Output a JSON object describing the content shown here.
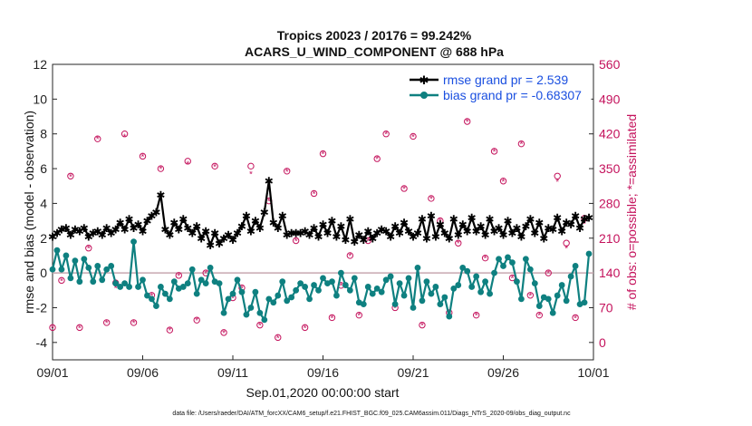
{
  "chart_data": {
    "type": "line",
    "title": "Tropics 20023 / 20176 = 99.242%",
    "subtitle": "ACARS_U_WIND_COMPONENT @ 688 hPa",
    "xlabel": "Sep.01,2020 00:00:00 start",
    "ylabel": "rmse and bias (model - observation)",
    "ylabel_right": "# of obs: o=possible; *=assimilated",
    "footer": "data file: /Users/raeder/DAI/ATM_forcXX/CAM6_setup/f.e21.FHIST_BGC.f09_025.CAM6assim.011/Diags_NTrS_2020-09/obs_diag_output.nc",
    "xlim": [
      0,
      30
    ],
    "ylim": [
      -5,
      12
    ],
    "ylim_right": [
      -35,
      560
    ],
    "xtick_labels": [
      "09/01",
      "09/06",
      "09/11",
      "09/16",
      "09/21",
      "09/26",
      "10/01"
    ],
    "ytick_labels": [
      "-4",
      "-2",
      "0",
      "2",
      "4",
      "6",
      "8",
      "10",
      "12"
    ],
    "ytick_right_labels": [
      "0",
      "70",
      "140",
      "210",
      "280",
      "350",
      "420",
      "490",
      "560"
    ],
    "series": [
      {
        "name": "rmse grand pr = 2.539",
        "color": "#000000",
        "marker": "star",
        "x": [
          0,
          0.25,
          0.5,
          0.75,
          1,
          1.25,
          1.5,
          1.75,
          2,
          2.25,
          2.5,
          2.75,
          3,
          3.25,
          3.5,
          3.75,
          4,
          4.25,
          4.5,
          4.75,
          5,
          5.25,
          5.5,
          5.75,
          6,
          6.25,
          6.5,
          6.75,
          7,
          7.25,
          7.5,
          7.75,
          8,
          8.25,
          8.5,
          8.75,
          9,
          9.25,
          9.5,
          9.75,
          10,
          10.25,
          10.5,
          10.75,
          11,
          11.25,
          11.5,
          11.75,
          12,
          12.25,
          12.5,
          12.75,
          13,
          13.25,
          13.5,
          13.75,
          14,
          14.25,
          14.5,
          14.75,
          15,
          15.25,
          15.5,
          15.75,
          16,
          16.25,
          16.5,
          16.75,
          17,
          17.25,
          17.5,
          17.75,
          18,
          18.25,
          18.5,
          18.75,
          19,
          19.25,
          19.5,
          19.75,
          20,
          20.25,
          20.5,
          20.75,
          21,
          21.25,
          21.5,
          21.75,
          22,
          22.25,
          22.5,
          22.75,
          23,
          23.25,
          23.5,
          23.75,
          24,
          24.25,
          24.5,
          24.75,
          25,
          25.25,
          25.5,
          25.75,
          26,
          26.25,
          26.5,
          26.75,
          27,
          27.25,
          27.5,
          27.75,
          28,
          28.25,
          28.5,
          28.75,
          29,
          29.25,
          29.5,
          29.75
        ],
        "values": [
          2.1,
          2.3,
          2.5,
          2.6,
          2.2,
          2.5,
          2.4,
          2.6,
          2.1,
          2.3,
          2.4,
          2.2,
          2.6,
          2.3,
          2.5,
          2.9,
          2.5,
          3.1,
          2.6,
          2.8,
          2.4,
          3.0,
          3.3,
          3.5,
          4.5,
          2.5,
          2.2,
          2.9,
          2.5,
          3.1,
          2.6,
          2.3,
          2.7,
          2.0,
          2.4,
          1.6,
          2.3,
          1.7,
          2.0,
          2.2,
          1.9,
          2.3,
          2.7,
          3.3,
          2.4,
          3.0,
          2.6,
          3.5,
          5.3,
          2.9,
          2.6,
          3.3,
          2.2,
          2.3,
          2.3,
          2.3,
          2.4,
          2.2,
          2.6,
          2.1,
          2.8,
          2.3,
          3.0,
          2.1,
          2.7,
          1.9,
          3.1,
          1.8,
          2.2,
          1.9,
          2.4,
          2.0,
          2.3,
          2.5,
          2.4,
          2.1,
          2.7,
          2.3,
          2.9,
          2.4,
          2.1,
          2.3,
          3.1,
          2.0,
          3.3,
          2.1,
          2.8,
          2.3,
          2.0,
          3.1,
          2.2,
          2.8,
          2.4,
          3.2,
          2.4,
          2.7,
          2.2,
          3.1,
          2.4,
          2.6,
          2.2,
          3.0,
          2.3,
          2.6,
          2.1,
          2.7,
          3.1,
          2.3,
          2.9,
          2.0,
          2.6,
          2.5,
          3.2,
          2.4,
          2.9,
          2.8,
          3.3,
          2.6,
          3.1,
          3.2
        ],
        "legend_value": "2.539"
      },
      {
        "name": "bias grand pr = -0.68307",
        "color": "#0e8080",
        "marker": "circle",
        "x": [
          0,
          0.25,
          0.5,
          0.75,
          1,
          1.25,
          1.5,
          1.75,
          2,
          2.25,
          2.5,
          2.75,
          3,
          3.25,
          3.5,
          3.75,
          4,
          4.25,
          4.5,
          4.75,
          5,
          5.25,
          5.5,
          5.75,
          6,
          6.25,
          6.5,
          6.75,
          7,
          7.25,
          7.5,
          7.75,
          8,
          8.25,
          8.5,
          8.75,
          9,
          9.25,
          9.5,
          9.75,
          10,
          10.25,
          10.5,
          10.75,
          11,
          11.25,
          11.5,
          11.75,
          12,
          12.25,
          12.5,
          12.75,
          13,
          13.25,
          13.5,
          13.75,
          14,
          14.25,
          14.5,
          14.75,
          15,
          15.25,
          15.5,
          15.75,
          16,
          16.25,
          16.5,
          16.75,
          17,
          17.25,
          17.5,
          17.75,
          18,
          18.25,
          18.5,
          18.75,
          19,
          19.25,
          19.5,
          19.75,
          20,
          20.25,
          20.5,
          20.75,
          21,
          21.25,
          21.5,
          21.75,
          22,
          22.25,
          22.5,
          22.75,
          23,
          23.25,
          23.5,
          23.75,
          24,
          24.25,
          24.5,
          24.75,
          25,
          25.25,
          25.5,
          25.75,
          26,
          26.25,
          26.5,
          26.75,
          27,
          27.25,
          27.5,
          27.75,
          28,
          28.25,
          28.5,
          28.75,
          29,
          29.25,
          29.5,
          29.75
        ],
        "values": [
          0.2,
          1.3,
          0.2,
          1.0,
          -0.3,
          0.7,
          -0.5,
          0.8,
          0.3,
          -0.5,
          0.4,
          -0.4,
          0.2,
          0.4,
          -0.6,
          -0.8,
          -0.6,
          -0.8,
          1.8,
          -0.8,
          -0.4,
          -1.3,
          -1.5,
          -1.9,
          -0.8,
          -1.2,
          -1.5,
          -0.5,
          -0.9,
          -0.8,
          -0.6,
          0.2,
          -1.2,
          -0.4,
          -0.6,
          0.3,
          -0.5,
          -0.6,
          -2.3,
          -1.5,
          -1.2,
          -0.4,
          -1.1,
          -2.4,
          -2.0,
          -1.1,
          -2.3,
          -2.7,
          -1.5,
          -1.7,
          -1.3,
          -0.5,
          -1.6,
          -1.4,
          -1.0,
          -0.6,
          -0.8,
          -1.5,
          -0.7,
          -1.0,
          -0.3,
          -0.6,
          -0.5,
          -1.3,
          0.0,
          -0.7,
          -1.0,
          -0.3,
          -1.7,
          -1.8,
          -0.8,
          -1.2,
          -0.9,
          -1.1,
          -0.4,
          -0.2,
          -1.8,
          -0.6,
          -1.3,
          -0.3,
          -2.0,
          0.3,
          -1.6,
          -0.5,
          -1.2,
          -0.8,
          -1.8,
          -1.4,
          -2.5,
          -0.9,
          -0.7,
          0.3,
          0.1,
          -0.8,
          -0.2,
          -1.1,
          -0.5,
          -1.2,
          0.0,
          0.8,
          0.4,
          0.9,
          0.6,
          -0.5,
          -1.5,
          0.8,
          0.2,
          -0.6,
          -1.9,
          -1.4,
          -1.5,
          -2.3,
          -1.3,
          -0.7,
          -1.6,
          -0.2,
          0.4,
          -1.8,
          -1.7,
          1.1
        ]
      }
    ],
    "obs_possible": {
      "marker": "circle-open",
      "color": "#c4125c",
      "x": [
        0,
        0.5,
        1,
        1.5,
        2,
        2.5,
        3,
        3.5,
        4,
        4.5,
        5,
        5.5,
        6,
        6.5,
        7,
        7.5,
        8,
        8.5,
        9,
        9.5,
        10,
        10.5,
        11,
        11.5,
        12,
        12.5,
        13,
        13.5,
        14,
        14.5,
        15,
        15.5,
        16,
        16.5,
        17,
        17.5,
        18,
        18.5,
        19,
        19.5,
        20,
        20.5,
        21,
        21.5,
        22,
        22.5,
        23,
        23.5,
        24,
        24.5,
        25,
        25.5,
        26,
        26.5,
        27,
        27.5,
        28,
        28.5,
        29,
        29.5
      ],
      "values": [
        30,
        125,
        335,
        30,
        190,
        410,
        40,
        120,
        420,
        40,
        375,
        95,
        350,
        25,
        135,
        365,
        45,
        140,
        355,
        20,
        90,
        110,
        355,
        35,
        285,
        10,
        345,
        205,
        30,
        300,
        380,
        50,
        115,
        175,
        55,
        205,
        370,
        420,
        70,
        310,
        415,
        35,
        290,
        245,
        60,
        200,
        445,
        55,
        170,
        385,
        325,
        130,
        400,
        95,
        55,
        140,
        335,
        200,
        50,
        250
      ]
    },
    "obs_assimilated": {
      "marker": "star",
      "color": "#c4125c",
      "x": [
        0,
        0.5,
        1,
        1.5,
        2,
        2.5,
        3,
        3.5,
        4,
        4.5,
        5,
        5.5,
        6,
        6.5,
        7,
        7.5,
        8,
        8.5,
        9,
        9.5,
        10,
        10.5,
        11,
        11.5,
        12,
        12.5,
        13,
        13.5,
        14,
        14.5,
        15,
        15.5,
        16,
        16.5,
        17,
        17.5,
        18,
        18.5,
        19,
        19.5,
        20,
        20.5,
        21,
        21.5,
        22,
        22.5,
        23,
        23.5,
        24,
        24.5,
        25,
        25.5,
        26,
        26.5,
        27,
        27.5,
        28,
        28.5,
        29,
        29.5
      ],
      "values": [
        30,
        125,
        335,
        30,
        190,
        410,
        40,
        110,
        415,
        40,
        375,
        95,
        350,
        25,
        135,
        360,
        45,
        140,
        355,
        20,
        90,
        110,
        340,
        35,
        285,
        10,
        345,
        205,
        30,
        300,
        380,
        50,
        115,
        175,
        55,
        205,
        370,
        420,
        70,
        310,
        415,
        35,
        290,
        245,
        60,
        200,
        445,
        55,
        170,
        385,
        325,
        130,
        400,
        95,
        55,
        140,
        325,
        190,
        50,
        240
      ]
    },
    "legend_position": "top-right",
    "zero_line": true
  }
}
